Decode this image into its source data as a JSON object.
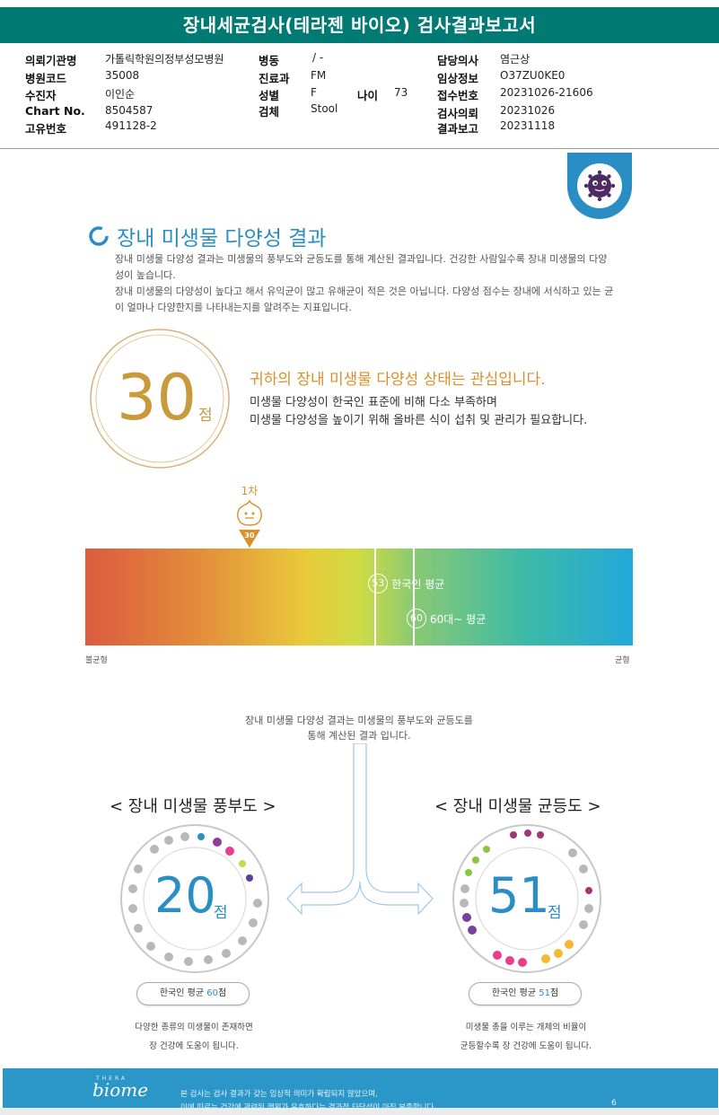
{
  "report": {
    "title": "장내세균검사(테라젠 바이오) 검사결과보고서"
  },
  "info": {
    "institution": {
      "label": "의뢰기관명",
      "value": "가톨릭학원의정부성모병원"
    },
    "hospital_code": {
      "label": "병원코드",
      "value": "35008"
    },
    "patient": {
      "label": "수진자",
      "value": "이인순"
    },
    "chart_no": {
      "label": "Chart No.",
      "value": "8504587"
    },
    "unique_no": {
      "label": "고유번호",
      "value": "491128-2"
    },
    "ward": {
      "label": "병동",
      "value": "/ -"
    },
    "department": {
      "label": "진료과",
      "value": "FM"
    },
    "sex": {
      "label": "성별",
      "value": "F"
    },
    "age": {
      "label": "나이",
      "value": "73"
    },
    "specimen": {
      "label": "검체",
      "value": "Stool"
    },
    "doctor": {
      "label": "담당의사",
      "value": "염근상"
    },
    "clinical_info": {
      "label": "임상정보",
      "value": "O37ZU0KE0"
    },
    "receipt_no": {
      "label": "접수번호",
      "value": "20231026-21606"
    },
    "request_date": {
      "label": "검사의뢰",
      "value": "20231026"
    },
    "report_date": {
      "label": "결과보고",
      "value": "20231118"
    }
  },
  "section": {
    "title": "장내 미생물 다양성 결과",
    "intro": [
      "장내 미생물 다양성 결과는 미생물의 풍부도와 균등도를 통해 계산된 결과입니다. 건강한 사람일수록 장내 미생물의 다양",
      "성이 높습니다.",
      "장내 미생물의 다양성이 높다고 해서 유익균이 많고 유해균이 적은 것은 아닙니다. 다양성 점수는 장내에 서식하고 있는 균",
      "이 얼마나 다양한지를 나타내는지를 알려주는 지표입니다."
    ]
  },
  "score": {
    "value": "30",
    "unit": "점",
    "status_heading": "귀하의 장내 미생물 다양성 상태는 관심입니다.",
    "status_lines": [
      "미생물 다양성이 한국인 표준에 비해 다소 부족하며",
      "미생물 다양성을 높이기 위해 올바른 식이 섭취 및 관리가 필요합니다."
    ]
  },
  "scale": {
    "min": 0,
    "max": 100,
    "marker_label": "1차",
    "marker_value": 30,
    "marker_text": "30",
    "left_label": "불균형",
    "right_label": "균형",
    "averages": [
      {
        "value": 53,
        "value_text": "53",
        "label": "한국인 평균"
      },
      {
        "value": 60,
        "value_text": "60",
        "label": "60대~ 평균"
      }
    ]
  },
  "explain": {
    "lines": [
      "장내 미생물 다양성 결과는 미생물의 풍부도와 균등도를",
      "통해 계산된 결과 입니다."
    ]
  },
  "richness": {
    "title": "< 장내 미생물 풍부도 >",
    "score": "20",
    "unit": "점",
    "avg_prefix": "한국인 평균 ",
    "avg_value": "60",
    "avg_suffix": "점",
    "note_lines": [
      "다양한 종류의 미생물이 존재하면",
      "장 건강에 도움이 됩니다."
    ]
  },
  "evenness": {
    "title": "< 장내 미생물 균등도 >",
    "score": "51",
    "unit": "점",
    "avg_prefix": "한국인 평균 ",
    "avg_value": "51",
    "avg_suffix": "점",
    "note_lines": [
      "미생물 총을 이루는 개체의 비율이",
      "균등할수록 장 건강에 도움이 됩니다."
    ]
  },
  "footer": {
    "brand_small": "THERA",
    "brand": "biome",
    "lines": [
      "본 검사는 검사 결과가 갖는 임상적 의미가 확립되지 않았으며,",
      "이에 따르는 건강에 관련된 행위가 유효하다는 결과적 타당성이 아직 부족합니다."
    ],
    "page": "6"
  },
  "colors": {
    "teal": "#007a72",
    "blue": "#2a8ec4",
    "gold": "#c99a3c",
    "orange": "#d9902b",
    "footer": "#2a97c8"
  }
}
